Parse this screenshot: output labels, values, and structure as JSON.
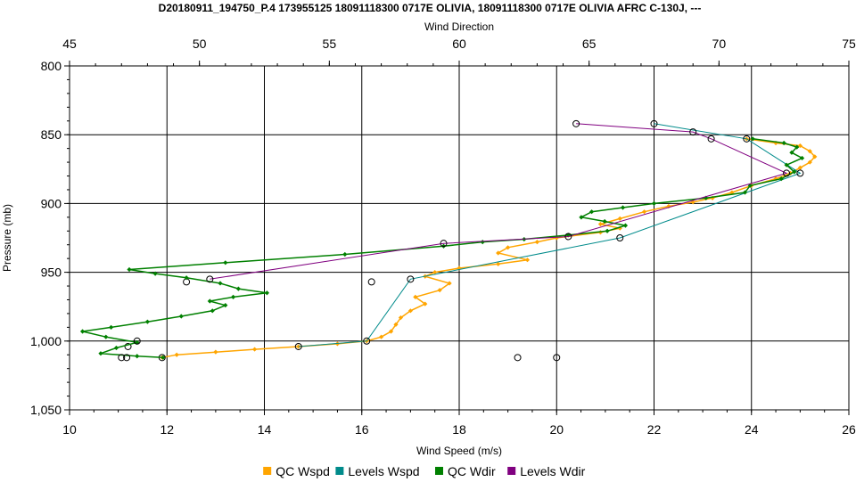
{
  "chart_data": {
    "type": "line",
    "title": "D20180911_194750_P.4 173955125 18091118300 0717E OLIVIA, 18091118300 0717E OLIVIA AFRC C-130J, ---",
    "xlabel_bottom": "Wind Speed (m/s)",
    "xlabel_top": "Wind Direction",
    "ylabel": "Pressure (mb)",
    "x_bottom_range": [
      10,
      26
    ],
    "x_bottom_ticks": [
      "10",
      "12",
      "14",
      "16",
      "18",
      "20",
      "22",
      "24",
      "26"
    ],
    "x_top_range": [
      45,
      75
    ],
    "x_top_ticks": [
      "45",
      "50",
      "55",
      "60",
      "65",
      "70",
      "75"
    ],
    "y_range": [
      800,
      1050
    ],
    "y_inverted": true,
    "y_ticks": [
      "800",
      "850",
      "900",
      "950",
      "1,000",
      "1,050"
    ],
    "grid": true,
    "legend_position": "bottom",
    "series": [
      {
        "name": "QC Wspd",
        "axis": "bottom",
        "color": "#ffa500",
        "marker": "diamond",
        "points": [
          [
            23.9,
            853
          ],
          [
            24.5,
            856
          ],
          [
            25.0,
            858
          ],
          [
            25.2,
            862
          ],
          [
            25.3,
            866
          ],
          [
            25.2,
            870
          ],
          [
            25.0,
            874
          ],
          [
            24.8,
            878
          ],
          [
            24.5,
            882
          ],
          [
            24.0,
            887
          ],
          [
            23.6,
            892
          ],
          [
            23.2,
            896
          ],
          [
            22.8,
            899
          ],
          [
            22.3,
            902
          ],
          [
            21.8,
            906
          ],
          [
            21.3,
            911
          ],
          [
            20.9,
            915
          ],
          [
            21.3,
            918
          ],
          [
            20.9,
            921
          ],
          [
            20.0,
            925
          ],
          [
            19.6,
            928
          ],
          [
            19.0,
            932
          ],
          [
            18.8,
            936
          ],
          [
            19.4,
            941
          ],
          [
            18.8,
            944
          ],
          [
            18.0,
            947
          ],
          [
            17.5,
            950
          ],
          [
            17.3,
            953
          ],
          [
            17.8,
            958
          ],
          [
            17.6,
            963
          ],
          [
            17.1,
            968
          ],
          [
            17.3,
            973
          ],
          [
            17.0,
            978
          ],
          [
            16.8,
            983
          ],
          [
            16.7,
            988
          ],
          [
            16.6,
            993
          ],
          [
            16.4,
            997
          ],
          [
            16.1,
            1000
          ],
          [
            15.5,
            1002
          ],
          [
            14.7,
            1004
          ],
          [
            13.8,
            1006
          ],
          [
            13.0,
            1008
          ],
          [
            12.2,
            1010
          ],
          [
            11.9,
            1012
          ]
        ]
      },
      {
        "name": "Levels Wspd",
        "axis": "bottom",
        "color": "#008b8b",
        "marker": "circle",
        "points": [
          [
            22.0,
            842
          ],
          [
            23.9,
            853
          ],
          [
            25.0,
            878
          ],
          [
            21.3,
            925
          ],
          [
            17.0,
            955
          ],
          [
            16.1,
            1000
          ],
          [
            14.7,
            1004
          ],
          [
            12.4,
            957
          ],
          [
            16.2,
            957
          ],
          [
            11.2,
            1004
          ],
          [
            11.9,
            1012
          ],
          [
            19.2,
            1012
          ],
          [
            20.0,
            1012
          ]
        ]
      },
      {
        "name": "QC Wdir",
        "axis": "top",
        "color": "#008000",
        "marker": "diamond",
        "points": [
          [
            71.3,
            853
          ],
          [
            72.5,
            856
          ],
          [
            73.0,
            859
          ],
          [
            72.8,
            863
          ],
          [
            73.2,
            867
          ],
          [
            72.6,
            872
          ],
          [
            72.9,
            877
          ],
          [
            72.4,
            882
          ],
          [
            71.2,
            887
          ],
          [
            71.0,
            892
          ],
          [
            69.5,
            896
          ],
          [
            67.5,
            900
          ],
          [
            66.3,
            903
          ],
          [
            65.1,
            906
          ],
          [
            64.7,
            910
          ],
          [
            65.6,
            913
          ],
          [
            66.4,
            916
          ],
          [
            65.7,
            920
          ],
          [
            64.2,
            923
          ],
          [
            62.5,
            926
          ],
          [
            60.9,
            928
          ],
          [
            59.4,
            931
          ],
          [
            55.6,
            937
          ],
          [
            51.0,
            943
          ],
          [
            47.3,
            948
          ],
          [
            48.3,
            951
          ],
          [
            49.5,
            954
          ],
          [
            50.8,
            958
          ],
          [
            51.5,
            962
          ],
          [
            52.6,
            965
          ],
          [
            51.3,
            968
          ],
          [
            50.4,
            971
          ],
          [
            51.0,
            974
          ],
          [
            50.5,
            978
          ],
          [
            49.3,
            982
          ],
          [
            48.0,
            986
          ],
          [
            46.6,
            990
          ],
          [
            45.5,
            993
          ],
          [
            46.4,
            997
          ],
          [
            47.6,
            1001
          ],
          [
            46.8,
            1005
          ],
          [
            46.2,
            1009
          ],
          [
            47.6,
            1011
          ],
          [
            48.6,
            1012
          ]
        ]
      },
      {
        "name": "Levels Wdir",
        "axis": "top",
        "color": "#800080",
        "marker": "circle",
        "points": [
          [
            64.5,
            842
          ],
          [
            69.0,
            848
          ],
          [
            69.7,
            853
          ],
          [
            72.6,
            878
          ],
          [
            64.2,
            924
          ],
          [
            59.4,
            929
          ],
          [
            50.4,
            955
          ],
          [
            47.6,
            1000
          ],
          [
            47.2,
            1012
          ],
          [
            47.0,
            1012
          ]
        ]
      }
    ]
  }
}
